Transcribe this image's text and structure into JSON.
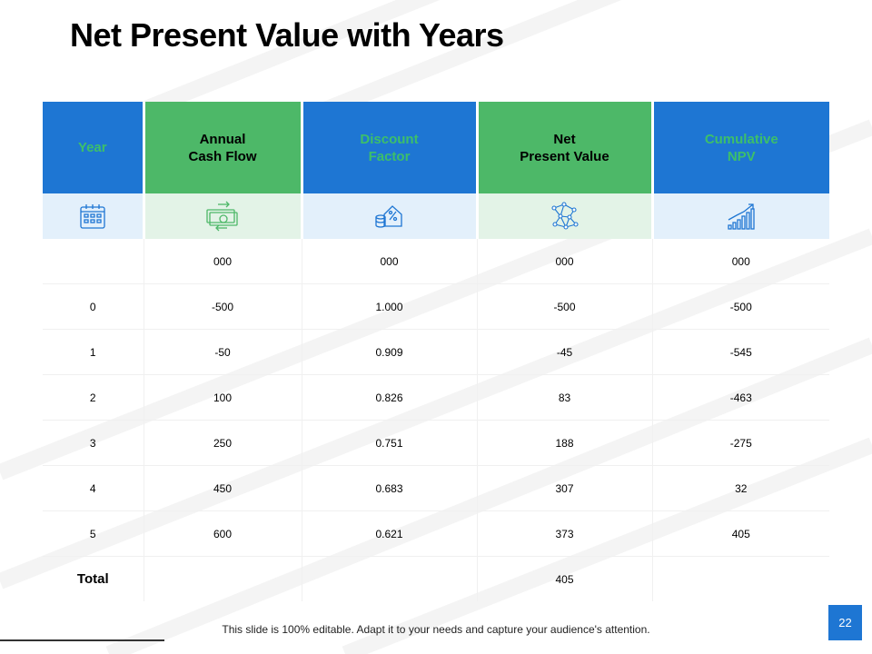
{
  "slide": {
    "title": "Net Present Value with Years",
    "footer": "This slide is 100% editable. Adapt it to your needs and capture your audience's attention.",
    "page_number": "22"
  },
  "colors": {
    "blue": "#1e76d3",
    "green": "#4db868",
    "blue_light": "#e3f0fb",
    "green_light": "#e3f3e7",
    "blue_header_text": "#3dbf6a"
  },
  "table": {
    "headers": [
      {
        "lines": [
          "Year"
        ],
        "icon": "calendar-icon"
      },
      {
        "lines": [
          "Annual",
          "Cash Flow"
        ],
        "icon": "cash-flow-icon"
      },
      {
        "lines": [
          "Discount",
          "Factor"
        ],
        "icon": "discount-icon"
      },
      {
        "lines": [
          "Net",
          "Present Value"
        ],
        "icon": "network-icon"
      },
      {
        "lines": [
          "Cumulative",
          "NPV"
        ],
        "icon": "growth-chart-icon"
      }
    ],
    "rows": [
      {
        "year": "",
        "cash_flow": "000",
        "discount": "000",
        "npv": "000",
        "cumulative": "000"
      },
      {
        "year": "0",
        "cash_flow": "-500",
        "discount": "1.000",
        "npv": "-500",
        "cumulative": "-500"
      },
      {
        "year": "1",
        "cash_flow": "-50",
        "discount": "0.909",
        "npv": "-45",
        "cumulative": "-545"
      },
      {
        "year": "2",
        "cash_flow": "100",
        "discount": "0.826",
        "npv": "83",
        "cumulative": "-463"
      },
      {
        "year": "3",
        "cash_flow": "250",
        "discount": "0.751",
        "npv": "188",
        "cumulative": "-275"
      },
      {
        "year": "4",
        "cash_flow": "450",
        "discount": "0.683",
        "npv": "307",
        "cumulative": "32"
      },
      {
        "year": "5",
        "cash_flow": "600",
        "discount": "0.621",
        "npv": "373",
        "cumulative": "405"
      }
    ],
    "total": {
      "label": "Total",
      "npv": "405"
    }
  }
}
